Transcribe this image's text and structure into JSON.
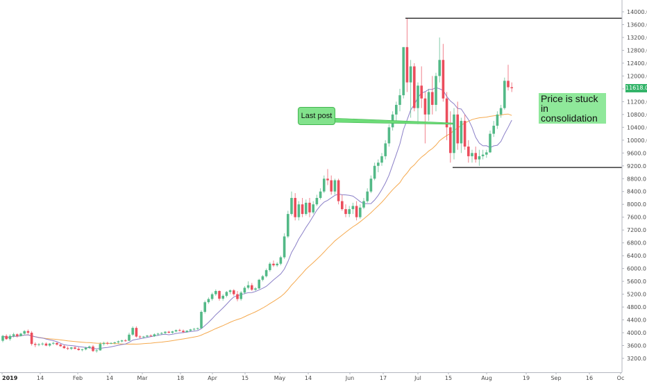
{
  "chart_data": {
    "type": "candlestick",
    "title": "",
    "xlabel": "",
    "ylabel": "",
    "ylim": [
      3000,
      14000
    ],
    "y_ticks": [
      3200,
      3600,
      4000,
      4400,
      4800,
      5200,
      5600,
      6000,
      6400,
      6800,
      7200,
      7600,
      8000,
      8400,
      8800,
      9200,
      9600,
      10000,
      10400,
      10800,
      11200,
      11600,
      12000,
      12400,
      12800,
      13200,
      13600,
      14000
    ],
    "x_tick_labels": [
      "2019",
      "14",
      "Feb",
      "14",
      "Mar",
      "18",
      "Apr",
      "15",
      "May",
      "14",
      "Jun",
      "17",
      "Jul",
      "15",
      "Aug",
      "19",
      "Sep",
      "16",
      "Oc"
    ],
    "grid": false,
    "up_color": "#53b987",
    "down_color": "#eb4d5c",
    "ma_fast_color": "#8a7fc7",
    "ma_slow_color": "#f5a94e",
    "current_price": "11618.0",
    "horizontal_levels": [
      13800,
      9150
    ],
    "annotations": {
      "last_post": "Last post",
      "consolidation": "Price is stuck in consolidation"
    },
    "candles": [
      [
        3750,
        3930,
        3700,
        3900
      ],
      [
        3900,
        3950,
        3780,
        3800
      ],
      [
        3800,
        3950,
        3750,
        3900
      ],
      [
        3900,
        4000,
        3850,
        3950
      ],
      [
        3950,
        3980,
        3850,
        3900
      ],
      [
        3900,
        4000,
        3880,
        3970
      ],
      [
        3970,
        4080,
        3940,
        4050
      ],
      [
        4050,
        4100,
        3950,
        4000
      ],
      [
        4000,
        4050,
        3600,
        3650
      ],
      [
        3650,
        3700,
        3550,
        3620
      ],
      [
        3620,
        3680,
        3580,
        3640
      ],
      [
        3640,
        3700,
        3600,
        3660
      ],
      [
        3660,
        3700,
        3580,
        3600
      ],
      [
        3600,
        3680,
        3560,
        3660
      ],
      [
        3660,
        3720,
        3620,
        3680
      ],
      [
        3680,
        3700,
        3600,
        3630
      ],
      [
        3630,
        3660,
        3560,
        3580
      ],
      [
        3580,
        3620,
        3500,
        3520
      ],
      [
        3520,
        3570,
        3460,
        3500
      ],
      [
        3500,
        3560,
        3460,
        3540
      ],
      [
        3540,
        3580,
        3480,
        3500
      ],
      [
        3500,
        3560,
        3440,
        3460
      ],
      [
        3460,
        3500,
        3420,
        3480
      ],
      [
        3480,
        3560,
        3450,
        3530
      ],
      [
        3530,
        3600,
        3500,
        3570
      ],
      [
        3570,
        3620,
        3400,
        3430
      ],
      [
        3430,
        3480,
        3380,
        3450
      ],
      [
        3450,
        3700,
        3440,
        3650
      ],
      [
        3650,
        3720,
        3600,
        3680
      ],
      [
        3680,
        3720,
        3620,
        3660
      ],
      [
        3660,
        3700,
        3640,
        3680
      ],
      [
        3680,
        3720,
        3640,
        3700
      ],
      [
        3700,
        3760,
        3660,
        3730
      ],
      [
        3730,
        3780,
        3700,
        3760
      ],
      [
        3760,
        3800,
        3720,
        3750
      ],
      [
        3750,
        4000,
        3740,
        3940
      ],
      [
        3940,
        4200,
        3900,
        4150
      ],
      [
        4150,
        4200,
        3850,
        3880
      ],
      [
        3880,
        3920,
        3820,
        3860
      ],
      [
        3860,
        3900,
        3820,
        3880
      ],
      [
        3880,
        3930,
        3860,
        3910
      ],
      [
        3910,
        3950,
        3880,
        3890
      ],
      [
        3890,
        3980,
        3870,
        3950
      ],
      [
        3950,
        4000,
        3900,
        3970
      ],
      [
        3970,
        4020,
        3930,
        3990
      ],
      [
        3990,
        4050,
        3960,
        4030
      ],
      [
        4030,
        4060,
        3980,
        4000
      ],
      [
        4000,
        4060,
        3970,
        4040
      ],
      [
        4040,
        4100,
        4010,
        4080
      ],
      [
        4080,
        4120,
        4040,
        4060
      ],
      [
        4060,
        4100,
        3990,
        4020
      ],
      [
        4020,
        4080,
        4000,
        4060
      ],
      [
        4060,
        4120,
        4040,
        4100
      ],
      [
        4100,
        4150,
        4060,
        4120
      ],
      [
        4120,
        4160,
        4090,
        4140
      ],
      [
        4140,
        4700,
        4130,
        4650
      ],
      [
        4650,
        5000,
        4600,
        4950
      ],
      [
        4950,
        5100,
        4900,
        5050
      ],
      [
        5050,
        5250,
        5000,
        5200
      ],
      [
        5200,
        5350,
        5150,
        5300
      ],
      [
        5300,
        5320,
        5000,
        5060
      ],
      [
        5060,
        5200,
        5000,
        5150
      ],
      [
        5150,
        5300,
        5100,
        5270
      ],
      [
        5270,
        5350,
        5200,
        5320
      ],
      [
        5320,
        5360,
        5150,
        5200
      ],
      [
        5200,
        5300,
        4980,
        5050
      ],
      [
        5050,
        5300,
        5000,
        5250
      ],
      [
        5250,
        5450,
        5200,
        5400
      ],
      [
        5400,
        5600,
        5350,
        5480
      ],
      [
        5480,
        5550,
        5300,
        5340
      ],
      [
        5340,
        5420,
        5300,
        5380
      ],
      [
        5380,
        5680,
        5360,
        5650
      ],
      [
        5650,
        5800,
        5600,
        5760
      ],
      [
        5760,
        6000,
        5720,
        5950
      ],
      [
        5950,
        6200,
        5900,
        6150
      ],
      [
        6150,
        6250,
        6050,
        6100
      ],
      [
        6100,
        6200,
        6050,
        6150
      ],
      [
        6150,
        6400,
        6100,
        6350
      ],
      [
        6350,
        7100,
        6300,
        7000
      ],
      [
        7000,
        7800,
        6950,
        7700
      ],
      [
        7700,
        8400,
        7650,
        8200
      ],
      [
        8200,
        8350,
        7500,
        7600
      ],
      [
        7600,
        8100,
        7500,
        8000
      ],
      [
        8000,
        8200,
        7600,
        7700
      ],
      [
        7700,
        8150,
        7650,
        8050
      ],
      [
        8050,
        8200,
        7600,
        7750
      ],
      [
        7750,
        8100,
        7700,
        8000
      ],
      [
        8000,
        8300,
        7950,
        8200
      ],
      [
        8200,
        8500,
        8150,
        8400
      ],
      [
        8400,
        8900,
        8350,
        8800
      ],
      [
        8800,
        9100,
        8600,
        8750
      ],
      [
        8750,
        8900,
        8300,
        8400
      ],
      [
        8400,
        8800,
        8300,
        8750
      ],
      [
        8750,
        8800,
        8000,
        8100
      ],
      [
        8100,
        8300,
        7800,
        7850
      ],
      [
        7850,
        8000,
        7600,
        7700
      ],
      [
        7700,
        7950,
        7600,
        7850
      ],
      [
        7850,
        8050,
        7700,
        7950
      ],
      [
        7950,
        8100,
        7500,
        7600
      ],
      [
        7600,
        8000,
        7550,
        7900
      ],
      [
        7900,
        8200,
        7850,
        8100
      ],
      [
        8100,
        8500,
        8050,
        8400
      ],
      [
        8400,
        8900,
        8350,
        8800
      ],
      [
        8800,
        9300,
        8750,
        9200
      ],
      [
        9200,
        9400,
        9000,
        9300
      ],
      [
        9300,
        9600,
        9200,
        9500
      ],
      [
        9500,
        10000,
        9400,
        9900
      ],
      [
        9900,
        10500,
        9800,
        10400
      ],
      [
        10400,
        10900,
        10300,
        10800
      ],
      [
        10800,
        11200,
        10600,
        11100
      ],
      [
        11100,
        11600,
        10900,
        11400
      ],
      [
        11400,
        12900,
        11300,
        12900
      ],
      [
        12900,
        13800,
        11500,
        11800
      ],
      [
        11800,
        12500,
        10700,
        12300
      ],
      [
        12300,
        12400,
        10900,
        11000
      ],
      [
        11000,
        11800,
        10500,
        11700
      ],
      [
        11700,
        12300,
        11000,
        11300
      ],
      [
        11300,
        11500,
        9900,
        10800
      ],
      [
        10800,
        11600,
        10600,
        11500
      ],
      [
        11500,
        12000,
        10800,
        11100
      ],
      [
        11100,
        12100,
        10900,
        12000
      ],
      [
        12000,
        13200,
        11800,
        12500
      ],
      [
        12500,
        13000,
        11200,
        11300
      ],
      [
        11300,
        11500,
        10000,
        10400
      ],
      [
        10400,
        10900,
        9300,
        9600
      ],
      [
        9600,
        11000,
        9400,
        10800
      ],
      [
        10800,
        11200,
        9700,
        9900
      ],
      [
        9900,
        10700,
        9600,
        10600
      ],
      [
        10600,
        10800,
        9700,
        9800
      ],
      [
        9800,
        10000,
        9300,
        9500
      ],
      [
        9500,
        9700,
        9300,
        9600
      ],
      [
        9600,
        9800,
        9300,
        9400
      ],
      [
        9400,
        9700,
        9200,
        9500
      ],
      [
        9500,
        9700,
        9400,
        9550
      ],
      [
        9550,
        9700,
        9450,
        9620
      ],
      [
        9620,
        10300,
        9600,
        10200
      ],
      [
        10200,
        10600,
        10100,
        10450
      ],
      [
        10450,
        10900,
        10350,
        10800
      ],
      [
        10800,
        11100,
        10700,
        11000
      ],
      [
        11000,
        11950,
        10950,
        11850
      ],
      [
        11850,
        12350,
        11550,
        11650
      ],
      [
        11650,
        11800,
        11500,
        11618
      ]
    ]
  }
}
